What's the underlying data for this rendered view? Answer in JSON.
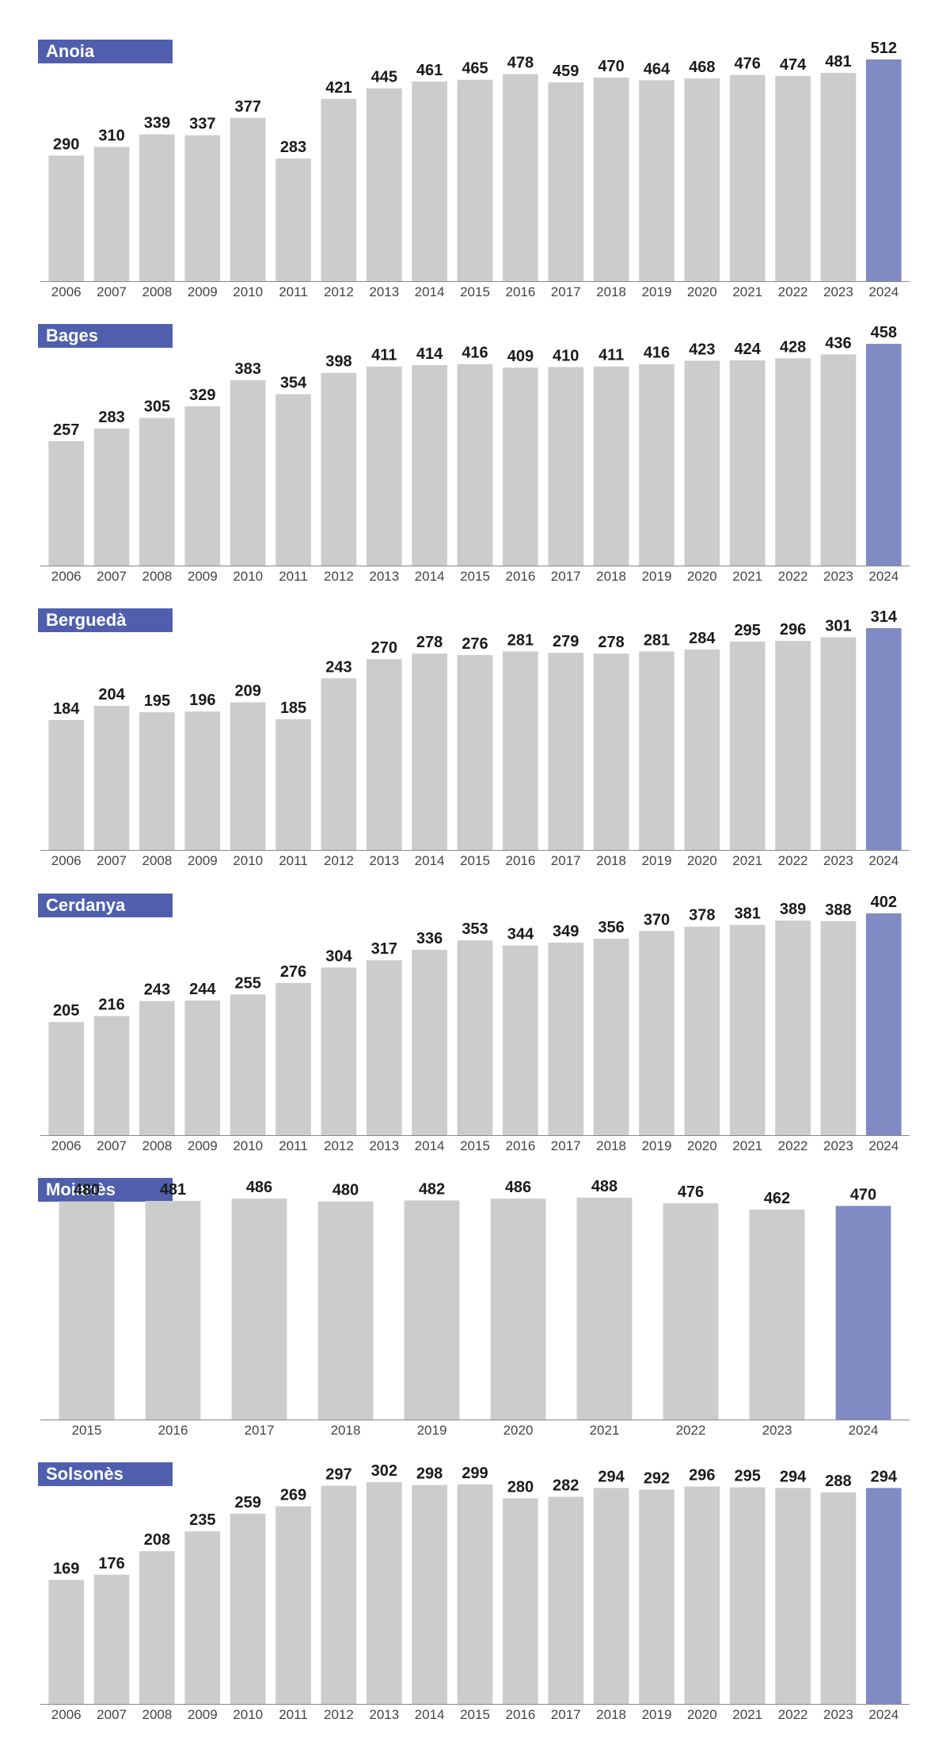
{
  "colors": {
    "bar": "#cccccc",
    "highlight": "#7f8bc2",
    "title_bg": "#4f5fae",
    "axis": "#888888"
  },
  "chart_data": [
    {
      "type": "bar",
      "title": "Anoia",
      "categories": [
        "2006",
        "2007",
        "2008",
        "2009",
        "2010",
        "2011",
        "2012",
        "2013",
        "2014",
        "2015",
        "2016",
        "2017",
        "2018",
        "2019",
        "2020",
        "2021",
        "2022",
        "2023",
        "2024"
      ],
      "values": [
        290,
        310,
        339,
        337,
        377,
        283,
        421,
        445,
        461,
        465,
        478,
        459,
        470,
        464,
        468,
        476,
        474,
        481,
        512
      ],
      "highlight": "2024"
    },
    {
      "type": "bar",
      "title": "Bages",
      "categories": [
        "2006",
        "2007",
        "2008",
        "2009",
        "2010",
        "2011",
        "2012",
        "2013",
        "2014",
        "2015",
        "2016",
        "2017",
        "2018",
        "2019",
        "2020",
        "2021",
        "2022",
        "2023",
        "2024"
      ],
      "values": [
        257,
        283,
        305,
        329,
        383,
        354,
        398,
        411,
        414,
        416,
        409,
        410,
        411,
        416,
        423,
        424,
        428,
        436,
        458
      ],
      "highlight": "2024"
    },
    {
      "type": "bar",
      "title": "Berguedà",
      "categories": [
        "2006",
        "2007",
        "2008",
        "2009",
        "2010",
        "2011",
        "2012",
        "2013",
        "2014",
        "2015",
        "2016",
        "2017",
        "2018",
        "2019",
        "2020",
        "2021",
        "2022",
        "2023",
        "2024"
      ],
      "values": [
        184,
        204,
        195,
        196,
        209,
        185,
        243,
        270,
        278,
        276,
        281,
        279,
        278,
        281,
        284,
        295,
        296,
        301,
        314
      ],
      "highlight": "2024"
    },
    {
      "type": "bar",
      "title": "Cerdanya",
      "categories": [
        "2006",
        "2007",
        "2008",
        "2009",
        "2010",
        "2011",
        "2012",
        "2013",
        "2014",
        "2015",
        "2016",
        "2017",
        "2018",
        "2019",
        "2020",
        "2021",
        "2022",
        "2023",
        "2024"
      ],
      "values": [
        205,
        216,
        243,
        244,
        255,
        276,
        304,
        317,
        336,
        353,
        344,
        349,
        356,
        370,
        378,
        381,
        389,
        388,
        402
      ],
      "highlight": "2024"
    },
    {
      "type": "bar",
      "title": "Moianès",
      "categories": [
        "2015",
        "2016",
        "2017",
        "2018",
        "2019",
        "2020",
        "2021",
        "2022",
        "2023",
        "2024"
      ],
      "values": [
        480,
        481,
        486,
        480,
        482,
        486,
        488,
        476,
        462,
        470
      ],
      "highlight": "2024"
    },
    {
      "type": "bar",
      "title": "Solsonès",
      "categories": [
        "2006",
        "2007",
        "2008",
        "2009",
        "2010",
        "2011",
        "2012",
        "2013",
        "2014",
        "2015",
        "2016",
        "2017",
        "2018",
        "2019",
        "2020",
        "2021",
        "2022",
        "2023",
        "2024"
      ],
      "values": [
        169,
        176,
        208,
        235,
        259,
        269,
        297,
        302,
        298,
        299,
        280,
        282,
        294,
        292,
        296,
        295,
        294,
        288,
        294
      ],
      "highlight": "2024"
    }
  ]
}
